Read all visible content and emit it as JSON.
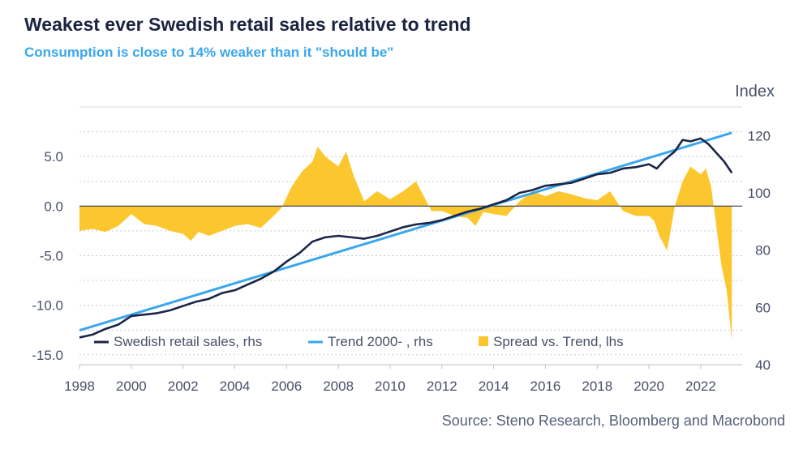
{
  "header": {
    "title": "Weakest ever Swedish retail sales relative to trend",
    "subtitle": "Consumption is close to 14% weaker than it \"should be\"",
    "source": "Source: Steno Research, Bloomberg and Macrobond"
  },
  "chart_data": {
    "type": "line",
    "title": "Weakest ever Swedish retail sales relative to trend",
    "subtitle": "Consumption is close to 14% weaker than it \"should be\"",
    "y_right_label": "Index",
    "x_ticks": [
      "1998",
      "2000",
      "2002",
      "2004",
      "2006",
      "2008",
      "2010",
      "2012",
      "2014",
      "2016",
      "2018",
      "2020",
      "2022"
    ],
    "x_range": [
      1998,
      2023.6
    ],
    "y_left_range": [
      -16,
      10
    ],
    "y_left_ticks": [
      "-15.0",
      "-10.0",
      "-5.0",
      "0.0",
      "5.0"
    ],
    "y_right_range": [
      40,
      130
    ],
    "y_right_ticks": [
      "40",
      "60",
      "80",
      "100",
      "120"
    ],
    "legend_placement": "bottom-left",
    "colors": {
      "retail": "#1b2545",
      "trend": "#3aa7ec",
      "spread": "#fcc72e",
      "grid": "#c9ccd6"
    },
    "series": [
      {
        "name": "Swedish retail sales, rhs",
        "kind": "line",
        "axis": "right",
        "x": [
          1998.0,
          1998.5,
          1999.0,
          1999.5,
          2000.0,
          2000.5,
          2001.0,
          2001.5,
          2002.0,
          2002.5,
          2003.0,
          2003.5,
          2004.0,
          2004.5,
          2005.0,
          2005.5,
          2006.0,
          2006.5,
          2007.0,
          2007.5,
          2008.0,
          2008.5,
          2009.0,
          2009.5,
          2010.0,
          2010.5,
          2011.0,
          2011.5,
          2012.0,
          2012.5,
          2013.0,
          2013.5,
          2014.0,
          2014.5,
          2015.0,
          2015.5,
          2016.0,
          2016.5,
          2017.0,
          2017.5,
          2018.0,
          2018.5,
          2019.0,
          2019.5,
          2020.0,
          2020.3,
          2020.6,
          2021.0,
          2021.3,
          2021.6,
          2022.0,
          2022.3,
          2022.6,
          2022.9,
          2023.2
        ],
        "values": [
          49.5,
          50.5,
          52.5,
          54.0,
          57.0,
          57.5,
          58.0,
          59.0,
          60.5,
          62.0,
          63.0,
          65.0,
          66.0,
          68.0,
          70.0,
          72.5,
          76.0,
          79.0,
          83.0,
          84.5,
          85.0,
          84.5,
          84.0,
          85.0,
          86.5,
          88.0,
          89.0,
          89.5,
          90.5,
          92.0,
          93.5,
          94.5,
          96.0,
          97.5,
          100.0,
          101.0,
          102.5,
          103.0,
          103.5,
          105.0,
          106.5,
          107.0,
          108.5,
          109.0,
          110.0,
          108.5,
          111.5,
          114.5,
          118.5,
          118.0,
          119.0,
          117.0,
          114.0,
          111.0,
          107.0
        ]
      },
      {
        "name": "Trend 2000- , rhs",
        "kind": "line",
        "axis": "right",
        "x": [
          1998.0,
          2023.2
        ],
        "values": [
          52.0,
          121.0
        ]
      },
      {
        "name": "Spread vs. Trend, lhs",
        "kind": "area",
        "axis": "left",
        "x": [
          1998.0,
          1998.5,
          1999.0,
          1999.5,
          2000.0,
          2000.5,
          2001.0,
          2001.5,
          2002.0,
          2002.3,
          2002.6,
          2003.0,
          2003.5,
          2004.0,
          2004.5,
          2005.0,
          2005.5,
          2005.8,
          2006.2,
          2006.6,
          2007.0,
          2007.2,
          2007.5,
          2008.0,
          2008.3,
          2008.6,
          2009.0,
          2009.5,
          2010.0,
          2010.5,
          2011.0,
          2011.3,
          2011.6,
          2012.0,
          2012.5,
          2013.0,
          2013.3,
          2013.6,
          2014.0,
          2014.5,
          2015.0,
          2015.5,
          2016.0,
          2016.5,
          2017.0,
          2017.5,
          2018.0,
          2018.5,
          2019.0,
          2019.5,
          2020.0,
          2020.2,
          2020.4,
          2020.7,
          2021.0,
          2021.3,
          2021.6,
          2022.0,
          2022.2,
          2022.4,
          2022.6,
          2022.8,
          2023.0,
          2023.2
        ],
        "values": [
          -2.5,
          -2.3,
          -2.6,
          -2.0,
          -0.8,
          -1.8,
          -2.0,
          -2.5,
          -2.8,
          -3.5,
          -2.6,
          -3.0,
          -2.5,
          -2.0,
          -1.8,
          -2.2,
          -1.0,
          -0.2,
          2.0,
          3.5,
          4.5,
          6.0,
          5.0,
          4.0,
          5.5,
          3.0,
          0.5,
          1.5,
          0.7,
          1.5,
          2.5,
          1.0,
          -0.5,
          -0.5,
          -1.0,
          -1.2,
          -2.0,
          -0.6,
          -0.8,
          -1.0,
          0.5,
          1.5,
          1.0,
          1.5,
          1.2,
          0.8,
          0.6,
          1.5,
          -0.5,
          -1.0,
          -1.0,
          -1.5,
          -3.0,
          -4.5,
          0.0,
          2.5,
          4.0,
          3.2,
          3.8,
          2.0,
          -2.0,
          -6.0,
          -8.5,
          -13.5
        ]
      }
    ]
  }
}
